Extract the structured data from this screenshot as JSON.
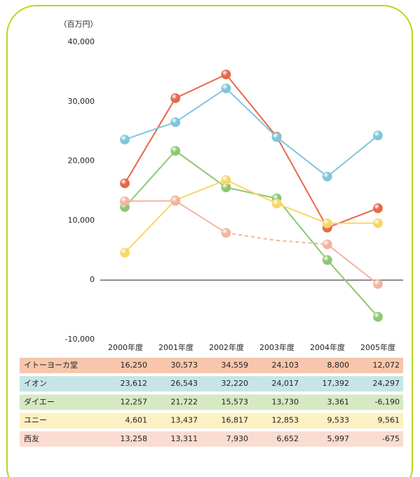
{
  "chart_data": {
    "type": "line",
    "unit_label": "（百万円）",
    "categories": [
      "2000年度",
      "2001年度",
      "2002年度",
      "2003年度",
      "2004年度",
      "2005年度"
    ],
    "ylim": [
      -10000,
      40000
    ],
    "yticks": [
      {
        "value": 40000,
        "label": "40,000"
      },
      {
        "value": 30000,
        "label": "30,000"
      },
      {
        "value": 20000,
        "label": "20,000"
      },
      {
        "value": 10000,
        "label": "10,000"
      },
      0,
      {
        "value": -10000,
        "label": "-10,000"
      }
    ],
    "series": [
      {
        "name": "イトーヨーカ堂",
        "color": "#e8674a",
        "row_color": "#f7c6ac",
        "values": [
          16250,
          30573,
          34559,
          24103,
          8800,
          12072
        ],
        "value_labels": [
          "16,250",
          "30,573",
          "34,559",
          "24,103",
          "8,800",
          "12,072"
        ]
      },
      {
        "name": "イオン",
        "color": "#7fc6da",
        "row_color": "#c6e5e6",
        "values": [
          23612,
          26543,
          32220,
          24017,
          17392,
          24297
        ],
        "value_labels": [
          "23,612",
          "26,543",
          "32,220",
          "24,017",
          "17,392",
          "24,297"
        ]
      },
      {
        "name": "ダイエー",
        "color": "#8dc772",
        "row_color": "#d5e9c2",
        "values": [
          12257,
          21722,
          15573,
          13730,
          3361,
          -6190
        ],
        "value_labels": [
          "12,257",
          "21,722",
          "15,573",
          "13,730",
          "3,361",
          "-6,190"
        ]
      },
      {
        "name": "ユニー",
        "color": "#f8d66a",
        "row_color": "#fdf0c2",
        "values": [
          4601,
          13437,
          16817,
          12853,
          9533,
          9561
        ],
        "value_labels": [
          "4,601",
          "13,437",
          "16,817",
          "12,853",
          "9,533",
          "9,561"
        ]
      },
      {
        "name": "西友",
        "color": "#f3b4a2",
        "row_color": "#fbdcd1",
        "values": [
          13258,
          13311,
          7930,
          6652,
          5997,
          -675
        ],
        "value_labels": [
          "13,258",
          "13,311",
          "7,930",
          "6,652",
          "5,997",
          "-675"
        ],
        "dashed_segments": [
          2,
          3
        ],
        "hidden_markers": [
          3
        ]
      }
    ]
  }
}
